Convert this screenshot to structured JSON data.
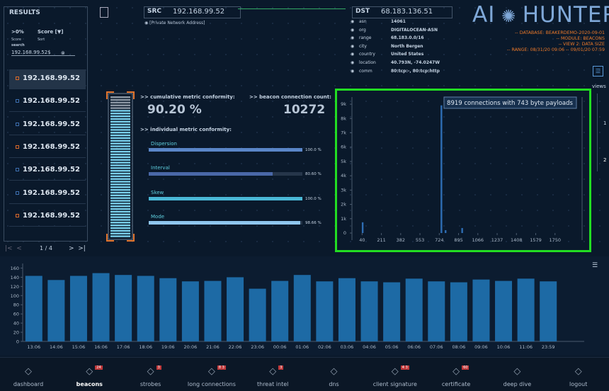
{
  "results": {
    "title": "RESULTS",
    "filter": ">0%",
    "sort": "Score [▼]",
    "filter_label": "Score",
    "sort_label": "Sort",
    "search_label": "search",
    "search": "192.168.99.52$",
    "rows": [
      "192.168.99.52",
      "192.168.99.52",
      "192.168.99.52",
      "192.168.99.52",
      "192.168.99.52",
      "192.168.99.52",
      "192.168.99.52"
    ],
    "page": "1 / 4"
  },
  "src": {
    "label": "SRC",
    "ip": "192.168.99.52",
    "note": "[Private Network Address]"
  },
  "dst": {
    "label": "DST",
    "ip": "68.183.136.51",
    "fields": [
      {
        "key": "asn",
        "value": "14061"
      },
      {
        "key": "org",
        "value": "DIGITALOCEAN-ASN"
      },
      {
        "key": "range",
        "value": "68.183.0.0/16"
      },
      {
        "key": "city",
        "value": "North Bergen"
      },
      {
        "key": "country",
        "value": "United States"
      },
      {
        "key": "location",
        "value": "40.793N, -74.0247W"
      },
      {
        "key": "comm",
        "value": "80:tcp:-, 80:tcp:http"
      }
    ]
  },
  "logo": {
    "left": "AI",
    "right": "HUNTER"
  },
  "info": [
    "-- DATABASE: BEAKERDEMO-2020-09-01",
    "-- MODULE: BEACONS",
    "-- VIEW 2: DATA SIZE",
    "-- RANGE: 08/31/20 09:06 -- 09/01/20 07:59"
  ],
  "views": {
    "label": "views",
    "options": [
      "1",
      "2"
    ]
  },
  "metrics": {
    "cumulative_label": ">> cumulative metric conformity:",
    "cumulative": "90.20 %",
    "count_label": ">> beacon connection count:",
    "count": "10272",
    "individual_label": ">> individual metric conformity:",
    "bars": [
      {
        "name": "Dispersion",
        "value": 100,
        "label": "100.0 %"
      },
      {
        "name": "Interval",
        "value": 80.6,
        "label": "80.60 %"
      },
      {
        "name": "Skew",
        "value": 100,
        "label": "100.0 %"
      },
      {
        "name": "Mode",
        "value": 98.66,
        "label": "98.66 %"
      }
    ]
  },
  "chart_data": [
    {
      "type": "bar",
      "annotation": "8919 connections with 743 byte payloads",
      "x": [
        45,
        743,
        780,
        927
      ],
      "values": [
        750,
        8919,
        200,
        350
      ],
      "color": "#2e6db3",
      "xlim": [
        -50,
        1990
      ],
      "ylim": [
        0,
        9500
      ],
      "xticks": [
        40,
        211,
        382,
        553,
        724,
        895,
        1066,
        1237,
        1408,
        1579,
        1750
      ],
      "yticks": [
        0,
        {
          "value": 1000,
          "label": "1k"
        },
        {
          "value": 2000,
          "label": "2k"
        },
        {
          "value": 3000,
          "label": "3k"
        },
        {
          "value": 4000,
          "label": "4k"
        },
        {
          "value": 5000,
          "label": "5k"
        },
        {
          "value": 6000,
          "label": "6k"
        },
        {
          "value": 7000,
          "label": "7k"
        },
        {
          "value": 8000,
          "label": "8k"
        },
        {
          "value": 9000,
          "label": "9k"
        }
      ]
    },
    {
      "type": "bar",
      "categories": [
        "13:06",
        "14:06",
        "15:06",
        "16:06",
        "17:06",
        "18:06",
        "19:06",
        "20:06",
        "21:06",
        "22:06",
        "23:06",
        "00:06",
        "01:06",
        "02:06",
        "03:06",
        "04:06",
        "05:06",
        "06:06",
        "07:06",
        "08:06",
        "09:06",
        "10:06",
        "11:06",
        "23:59"
      ],
      "values": [
        143,
        134,
        143,
        149,
        145,
        143,
        138,
        131,
        132,
        140,
        115,
        132,
        145,
        131,
        138,
        131,
        129,
        137,
        131,
        129,
        135,
        132,
        137,
        131
      ],
      "color": "#1d6aa5",
      "ylim": [
        0,
        170
      ],
      "yticks": [
        0,
        20,
        40,
        60,
        80,
        100,
        120,
        140,
        160
      ]
    }
  ],
  "nav": [
    {
      "label": "dashboard"
    },
    {
      "label": "beacons",
      "badge": "24"
    },
    {
      "label": "strobes",
      "badge": "3"
    },
    {
      "label": "long connections",
      "badge": "8 3"
    },
    {
      "label": "threat intel",
      "badge": "3"
    },
    {
      "label": "dns"
    },
    {
      "label": "client signature",
      "badge": "4 3"
    },
    {
      "label": "certificate",
      "badge": "60"
    },
    {
      "label": "deep dive"
    },
    {
      "label": "logout"
    }
  ]
}
